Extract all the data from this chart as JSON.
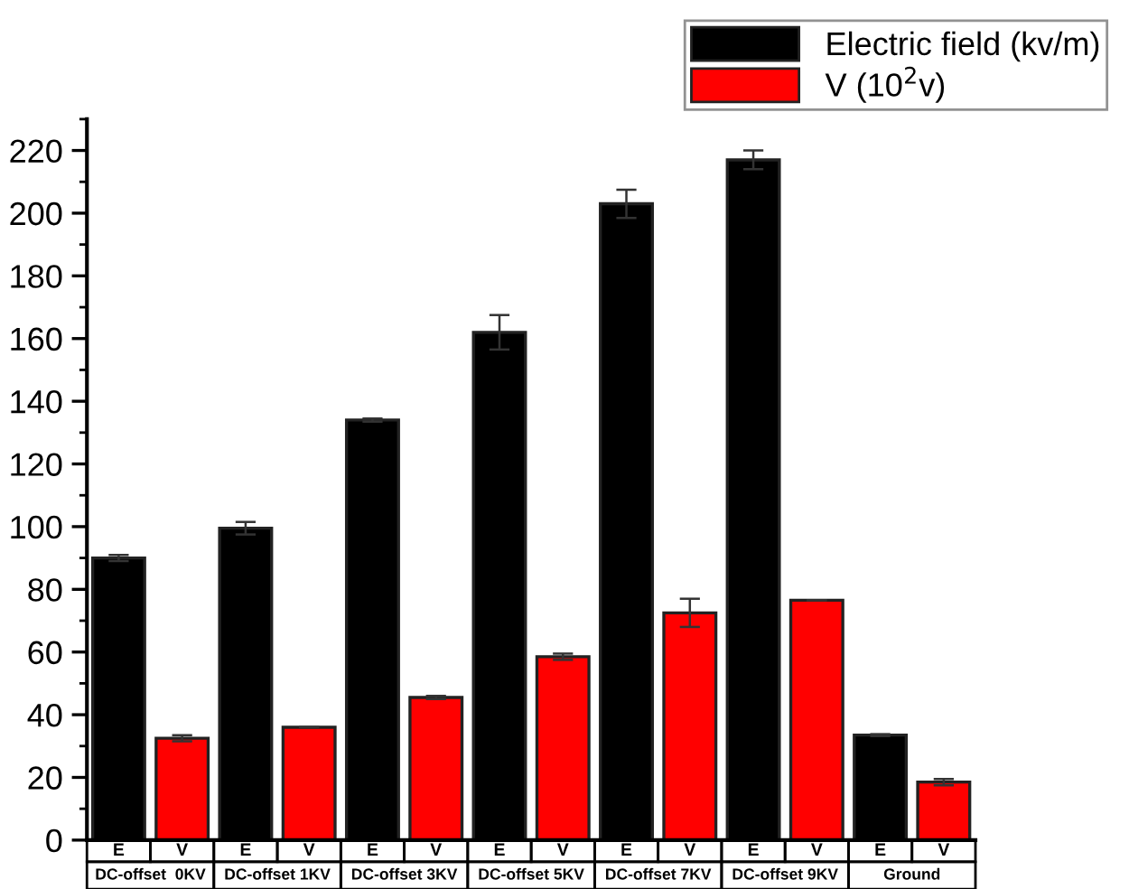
{
  "chart_data": {
    "type": "bar",
    "categories": [
      "DC-offset  0KV",
      "DC-offset 1KV",
      "DC-offset 3KV",
      "DC-offset 5KV",
      "DC-offset 7KV",
      "DC-offset 9KV",
      "Ground"
    ],
    "series": [
      {
        "name": "Electric field (kv/m)",
        "color": "#000000",
        "values": [
          90,
          99.5,
          134,
          162,
          203,
          217,
          33.5
        ],
        "errors": [
          1,
          2,
          0.5,
          5.5,
          4.5,
          3,
          0.3
        ]
      },
      {
        "name": "V (10$^{2}$v)",
        "color": "#ff0000",
        "values": [
          32.5,
          36,
          45.5,
          58.5,
          72.5,
          76.5,
          18.5
        ],
        "errors": [
          1,
          0,
          0.5,
          1,
          4.5,
          0,
          1
        ]
      }
    ],
    "annotations": [
      "E",
      "V",
      "E",
      "V",
      "E",
      "V",
      "E",
      "V",
      "E",
      "V",
      "E",
      "V",
      "E",
      "V"
    ],
    "ylim": [
      0,
      230
    ],
    "yticks": [
      0,
      20,
      40,
      60,
      80,
      100,
      120,
      140,
      160,
      180,
      200,
      220
    ],
    "legend": "top right",
    "grid": false
  }
}
